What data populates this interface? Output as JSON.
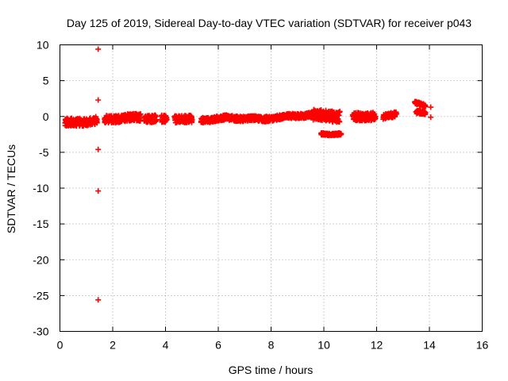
{
  "chart_data": {
    "type": "scatter",
    "title": "Day 125 of 2019, Sidereal Day-to-day VTEC variation (SDTVAR) for receiver p043",
    "xlabel": "GPS time / hours",
    "ylabel": "SDTVAR / TECUs",
    "xlim": [
      0,
      16
    ],
    "ylim": [
      -30,
      10
    ],
    "xticks": [
      "0",
      "2",
      "4",
      "6",
      "8",
      "10",
      "12",
      "14",
      "16"
    ],
    "yticks": [
      "10",
      "5",
      "0",
      "-5",
      "-10",
      "-15",
      "-20",
      "-25",
      "-30"
    ],
    "grid": true,
    "marker": "+",
    "color": "#ff0000",
    "outliers": [
      {
        "x": 1.45,
        "y": 9.4
      },
      {
        "x": 1.45,
        "y": 2.3
      },
      {
        "x": 1.45,
        "y": -4.6
      },
      {
        "x": 1.45,
        "y": -10.4
      },
      {
        "x": 1.45,
        "y": -25.6
      },
      {
        "x": 14.05,
        "y": 1.3
      },
      {
        "x": 14.05,
        "y": -0.1
      }
    ],
    "segments": [
      {
        "x_start": 0.2,
        "x_end": 1.4,
        "y_start": -0.9,
        "y_end": -0.6,
        "spread": 0.55
      },
      {
        "x_start": 1.7,
        "x_end": 3.05,
        "y_start": -0.4,
        "y_end": -0.1,
        "spread": 0.5
      },
      {
        "x_start": 3.2,
        "x_end": 3.65,
        "y_start": -0.3,
        "y_end": -0.3,
        "spread": 0.5
      },
      {
        "x_start": 3.85,
        "x_end": 4.05,
        "y_start": -0.4,
        "y_end": -0.4,
        "spread": 0.5
      },
      {
        "x_start": 4.35,
        "x_end": 5.0,
        "y_start": -0.3,
        "y_end": -0.4,
        "spread": 0.5
      },
      {
        "x_start": 5.35,
        "x_end": 6.35,
        "y_start": -0.5,
        "y_end": -0.2,
        "spread": 0.35
      },
      {
        "x_start": 6.35,
        "x_end": 7.8,
        "y_start": -0.2,
        "y_end": -0.4,
        "spread": 0.35
      },
      {
        "x_start": 7.8,
        "x_end": 9.6,
        "y_start": -0.3,
        "y_end": 0.3,
        "spread": 0.35
      },
      {
        "x_start": 9.6,
        "x_end": 10.6,
        "y_start": 0.2,
        "y_end": 0.0,
        "spread": 0.75
      },
      {
        "x_start": 9.9,
        "x_end": 10.65,
        "y_start": -2.5,
        "y_end": -2.4,
        "spread": 0.15
      },
      {
        "x_start": 11.1,
        "x_end": 11.95,
        "y_start": 0.0,
        "y_end": 0.0,
        "spread": 0.55
      },
      {
        "x_start": 12.25,
        "x_end": 12.75,
        "y_start": -0.1,
        "y_end": 0.4,
        "spread": 0.35
      },
      {
        "x_start": 13.45,
        "x_end": 13.85,
        "y_start": 1.9,
        "y_end": 1.6,
        "spread": 0.2
      },
      {
        "x_start": 13.5,
        "x_end": 13.85,
        "y_start": 0.6,
        "y_end": 0.6,
        "spread": 0.25
      }
    ]
  }
}
